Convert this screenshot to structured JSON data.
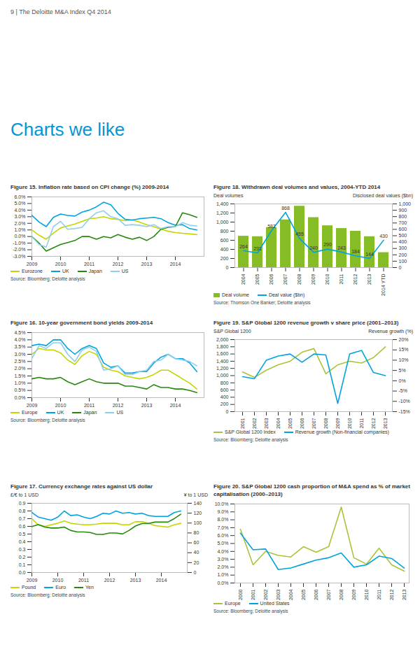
{
  "page": {
    "header": "9 | The Deloitte M&A Index Q4 2014",
    "title": "Charts we like"
  },
  "chart_data": [
    {
      "type": "line",
      "title": "Figure 15. Inflation rate based on CPI change (%) 2009-2014",
      "source": "Source: Bloomberg; Deloitte analysis",
      "x": [
        2009,
        2009.25,
        2009.5,
        2009.75,
        2010,
        2010.25,
        2010.5,
        2010.75,
        2011,
        2011.25,
        2011.5,
        2011.75,
        2012,
        2012.25,
        2012.5,
        2012.75,
        2013,
        2013.25,
        2013.5,
        2013.75,
        2014,
        2014.25,
        2014.5,
        2014.75
      ],
      "xlim": [
        2009,
        2015
      ],
      "xticks": [
        2009,
        2010,
        2011,
        2012,
        2013,
        2014
      ],
      "ylim": [
        -3,
        6
      ],
      "yticks": [
        {
          "value": -3,
          "label": "-3.0%"
        },
        {
          "value": -2,
          "label": "-2.0%"
        },
        {
          "value": -1,
          "label": "-1.0%"
        },
        {
          "value": 0,
          "label": "0.0%"
        },
        {
          "value": 1,
          "label": "1.0%"
        },
        {
          "value": 2,
          "label": "2.0%"
        },
        {
          "value": 3,
          "label": "3.0%"
        },
        {
          "value": 4,
          "label": "4.0%"
        },
        {
          "value": 5,
          "label": "5.0%"
        },
        {
          "value": 6,
          "label": "6.0%"
        }
      ],
      "grid": false,
      "legend": "bottom",
      "series": [
        {
          "name": "Eurozone",
          "color": "#c4d600",
          "values": [
            1.0,
            0.2,
            -0.4,
            0.5,
            1.3,
            1.6,
            1.9,
            2.3,
            2.7,
            2.8,
            3.0,
            2.7,
            2.6,
            2.4,
            2.5,
            2.2,
            1.8,
            1.5,
            1.1,
            0.8,
            0.6,
            0.5,
            0.4,
            0.3
          ]
        },
        {
          "name": "UK",
          "color": "#00a3e0",
          "values": [
            3.2,
            2.2,
            1.5,
            2.9,
            3.4,
            3.2,
            3.1,
            3.7,
            4.0,
            4.5,
            5.2,
            4.8,
            3.5,
            2.6,
            2.5,
            2.7,
            2.8,
            2.9,
            2.7,
            2.1,
            1.7,
            1.8,
            1.2,
            1.0
          ]
        },
        {
          "name": "Japan",
          "color": "#26890d",
          "values": [
            0.0,
            -1.0,
            -2.2,
            -1.7,
            -1.2,
            -0.9,
            -0.6,
            0.0,
            0.0,
            -0.4,
            0.0,
            -0.2,
            0.3,
            -0.1,
            -0.4,
            -0.1,
            -0.6,
            0.0,
            1.1,
            1.4,
            1.5,
            3.6,
            3.3,
            2.9
          ]
        },
        {
          "name": "US",
          "color": "#8ecfee",
          "values": [
            0.0,
            -1.2,
            -1.6,
            1.5,
            2.3,
            1.1,
            1.2,
            1.4,
            2.7,
            3.6,
            3.9,
            3.0,
            2.7,
            1.7,
            1.8,
            1.7,
            1.5,
            1.8,
            1.2,
            1.5,
            1.5,
            2.1,
            1.7,
            1.6
          ]
        }
      ]
    },
    {
      "type": "line",
      "title": "Figure 16. 10-year government bond yields 2009-2014",
      "source": "Source: Bloomberg; Deloitte analysis",
      "x": [
        2009,
        2009.25,
        2009.5,
        2009.75,
        2010,
        2010.25,
        2010.5,
        2010.75,
        2011,
        2011.25,
        2011.5,
        2011.75,
        2012,
        2012.25,
        2012.5,
        2012.75,
        2013,
        2013.25,
        2013.5,
        2013.75,
        2014,
        2014.25,
        2014.5,
        2014.75
      ],
      "xlim": [
        2009,
        2015
      ],
      "xticks": [
        2009,
        2010,
        2011,
        2012,
        2013,
        2014
      ],
      "ylim": [
        0,
        4.5
      ],
      "yticks": [
        {
          "value": 0,
          "label": "0.0%"
        },
        {
          "value": 0.5,
          "label": "0.5%"
        },
        {
          "value": 1,
          "label": "1.0%"
        },
        {
          "value": 1.5,
          "label": "1.5%"
        },
        {
          "value": 2,
          "label": "2.0%"
        },
        {
          "value": 2.5,
          "label": "2.5%"
        },
        {
          "value": 3,
          "label": "3.0%"
        },
        {
          "value": 3.5,
          "label": "3.5%"
        },
        {
          "value": 4,
          "label": "4.0%"
        },
        {
          "value": 4.5,
          "label": "4.5%"
        }
      ],
      "grid": false,
      "legend": "bottom",
      "series": [
        {
          "name": "Europe",
          "color": "#c4d600",
          "values": [
            3.0,
            3.4,
            3.3,
            3.3,
            3.1,
            2.6,
            2.3,
            2.9,
            3.2,
            3.0,
            2.1,
            1.9,
            1.8,
            1.5,
            1.4,
            1.3,
            1.4,
            1.6,
            1.9,
            1.9,
            1.6,
            1.3,
            1.0,
            0.6
          ]
        },
        {
          "name": "UK",
          "color": "#00a3e0",
          "values": [
            3.6,
            3.7,
            3.6,
            4.0,
            4.0,
            3.4,
            3.0,
            3.4,
            3.6,
            3.4,
            2.4,
            2.1,
            2.2,
            1.7,
            1.7,
            1.8,
            1.8,
            2.4,
            2.8,
            3.0,
            2.7,
            2.7,
            2.4,
            1.8
          ]
        },
        {
          "name": "Japan",
          "color": "#26890d",
          "values": [
            1.3,
            1.4,
            1.3,
            1.3,
            1.4,
            1.1,
            0.9,
            1.1,
            1.3,
            1.1,
            1.0,
            1.0,
            1.0,
            0.8,
            0.8,
            0.7,
            0.6,
            0.9,
            0.7,
            0.7,
            0.6,
            0.6,
            0.5,
            0.35
          ]
        },
        {
          "name": "US",
          "color": "#8ecfee",
          "values": [
            2.7,
            3.6,
            3.4,
            3.8,
            3.8,
            3.0,
            2.5,
            3.3,
            3.5,
            3.2,
            1.9,
            2.0,
            2.2,
            1.6,
            1.6,
            1.8,
            1.9,
            2.5,
            2.6,
            3.0,
            2.7,
            2.6,
            2.5,
            2.2
          ]
        }
      ]
    },
    {
      "type": "line",
      "title": "Figure 17. Currency exchange rates against US dollar",
      "source": "Source: Bloomberg; Deloitte analysis",
      "ylabel": "£/€ to 1 USD",
      "y2label": "¥ to 1 USD",
      "x": [
        2009,
        2009.25,
        2009.5,
        2009.75,
        2010,
        2010.25,
        2010.5,
        2010.75,
        2011,
        2011.25,
        2011.5,
        2011.75,
        2012,
        2012.25,
        2012.5,
        2012.75,
        2013,
        2013.25,
        2013.5,
        2013.75,
        2014,
        2014.25,
        2014.5,
        2014.75
      ],
      "xlim": [
        2009,
        2015
      ],
      "xticks": [
        2009,
        2010,
        2011,
        2012,
        2013,
        2014
      ],
      "ylim": [
        0,
        0.9
      ],
      "yticks": [
        {
          "value": 0,
          "label": "0.0"
        },
        0.1,
        0.2,
        0.3,
        0.4,
        0.5,
        0.6,
        0.7,
        0.8,
        0.9
      ],
      "y2lim": [
        0,
        140
      ],
      "y2ticks": [
        0,
        20,
        40,
        60,
        80,
        100,
        120,
        140
      ],
      "grid": false,
      "legend": "bottom",
      "series": [
        {
          "name": "Pound",
          "color": "#c4d600",
          "values": [
            0.7,
            0.62,
            0.6,
            0.62,
            0.64,
            0.67,
            0.64,
            0.63,
            0.62,
            0.62,
            0.63,
            0.64,
            0.64,
            0.64,
            0.62,
            0.62,
            0.66,
            0.66,
            0.64,
            0.61,
            0.6,
            0.59,
            0.62,
            0.64
          ]
        },
        {
          "name": "Euro",
          "color": "#00a3e0",
          "values": [
            0.78,
            0.72,
            0.7,
            0.68,
            0.72,
            0.8,
            0.74,
            0.75,
            0.72,
            0.7,
            0.73,
            0.77,
            0.76,
            0.8,
            0.77,
            0.78,
            0.76,
            0.77,
            0.74,
            0.73,
            0.73,
            0.73,
            0.78,
            0.8
          ]
        },
        {
          "name": "Yen",
          "color": "#26890d",
          "axis": "y2",
          "values": [
            93,
            97,
            92,
            90,
            90,
            92,
            85,
            82,
            82,
            81,
            77,
            77,
            80,
            80,
            78,
            85,
            94,
            99,
            99,
            102,
            102,
            102,
            109,
            118
          ]
        }
      ]
    },
    {
      "type": "bar",
      "title": "Figure 18. Withdrawn deal volumes and values, 2004-YTD 2014",
      "source": "Source: Thomson One Banker; Deloitte analysis",
      "ylabel": "Deal volumes",
      "y2label": "Disclosed deal values ($bn)",
      "categories": [
        "2004",
        "2005",
        "2006",
        "2007",
        "2008",
        "2009",
        "2010",
        "2011",
        "2012",
        "2013",
        "2014 YTD"
      ],
      "ylim": [
        0,
        1400
      ],
      "yticks": [
        0,
        200,
        400,
        600,
        800,
        {
          "value": 1000,
          "label": "1,000"
        },
        {
          "value": 1200,
          "label": "1,200"
        },
        {
          "value": 1400,
          "label": "1,400"
        }
      ],
      "y2lim": [
        0,
        1000
      ],
      "y2ticks": [
        0,
        100,
        200,
        300,
        400,
        500,
        600,
        700,
        800,
        900,
        {
          "value": 1000,
          "label": "1,000"
        }
      ],
      "grid": false,
      "legend": "bottom",
      "series": [
        {
          "name": "Deal volume",
          "type": "bar",
          "color": "#86bc25",
          "values": [
            690,
            680,
            880,
            1050,
            1350,
            1100,
            920,
            860,
            800,
            680,
            330
          ]
        },
        {
          "name": "Deal value ($bn)",
          "type": "line",
          "axis": "y2",
          "color": "#00a3e0",
          "data_labels": true,
          "values": [
            264,
            231,
            582,
            868,
            455,
            240,
            290,
            243,
            184,
            144,
            430
          ]
        }
      ]
    },
    {
      "type": "line",
      "title": "Figure 19. S&P Global 1200 revenue growth v share price (2001–2013)",
      "source": "Source: Bloomberg; Deloitte analysis",
      "ylabel": "S&P Global 1200",
      "y2label": "Revenue growth (%)",
      "categories": [
        "2001",
        "2002",
        "2003",
        "2004",
        "2005",
        "2006",
        "2007",
        "2008",
        "2009",
        "2010",
        "2011",
        "2012",
        "2013"
      ],
      "ylim": [
        0,
        2000
      ],
      "yticks": [
        0,
        200,
        400,
        600,
        800,
        {
          "value": 1000,
          "label": "1,000"
        },
        {
          "value": 1200,
          "label": "1,200"
        },
        {
          "value": 1400,
          "label": "1,400"
        },
        {
          "value": 1600,
          "label": "1,600"
        },
        {
          "value": 1800,
          "label": "1,800"
        },
        {
          "value": 2000,
          "label": "2,000"
        }
      ],
      "y2lim": [
        -15,
        20
      ],
      "y2ticks": [
        {
          "value": -15,
          "label": "-15%"
        },
        {
          "value": -10,
          "label": "-10%"
        },
        {
          "value": -5,
          "label": "-5%"
        },
        {
          "value": 0,
          "label": "0%"
        },
        {
          "value": 5,
          "label": "5%"
        },
        {
          "value": 10,
          "label": "10%"
        },
        {
          "value": 15,
          "label": "15%"
        },
        {
          "value": 20,
          "label": "20%"
        }
      ],
      "grid": false,
      "legend": "bottom",
      "series": [
        {
          "name": "S&P Global 1200 Index",
          "color": "#a8c43a",
          "values": [
            1100,
            950,
            1150,
            1300,
            1400,
            1650,
            1750,
            1050,
            1300,
            1400,
            1350,
            1500,
            1800
          ]
        },
        {
          "name": "Revenue growth (Non-financial companies)",
          "color": "#00a3e0",
          "axis": "y2",
          "values": [
            2,
            1,
            10,
            12,
            13,
            9,
            13,
            12.5,
            -11,
            13,
            14.75,
            4,
            2.5
          ]
        }
      ]
    },
    {
      "type": "line",
      "title": "Figure 20. S&P Global 1200 cash proportion of M&A spend as % of market capitalisation (2000–2013)",
      "source": "Source: Bloomberg; Deloitte analysis",
      "categories": [
        "2000",
        "2001",
        "2002",
        "2003",
        "2004",
        "2005",
        "2006",
        "2007",
        "2008",
        "2009",
        "2010",
        "2011",
        "2012",
        "2013"
      ],
      "ylim": [
        0,
        10
      ],
      "yticks": [
        {
          "value": 0,
          "label": "0.0%"
        },
        {
          "value": 1,
          "label": "1.0%"
        },
        {
          "value": 2,
          "label": "2.0%"
        },
        {
          "value": 3,
          "label": "3.0%"
        },
        {
          "value": 4,
          "label": "4.0%"
        },
        {
          "value": 5,
          "label": "5.0%"
        },
        {
          "value": 6,
          "label": "6.0%"
        },
        {
          "value": 7,
          "label": "7.0%"
        },
        {
          "value": 8,
          "label": "8.0%"
        },
        {
          "value": 9,
          "label": "9.0%"
        },
        {
          "value": 10,
          "label": "10.0%"
        }
      ],
      "grid": false,
      "legend": "bottom",
      "series": [
        {
          "name": "Europe",
          "color": "#a8c43a",
          "values": [
            6.8,
            2.3,
            4.0,
            3.5,
            3.3,
            4.6,
            3.9,
            4.6,
            9.6,
            3.2,
            2.4,
            4.4,
            2.3,
            1.5
          ]
        },
        {
          "name": "United States",
          "color": "#00a3e0",
          "values": [
            6.3,
            4.2,
            4.3,
            1.7,
            1.9,
            2.4,
            2.9,
            3.2,
            3.8,
            2.0,
            2.3,
            3.4,
            3.1,
            1.9
          ]
        }
      ]
    }
  ]
}
